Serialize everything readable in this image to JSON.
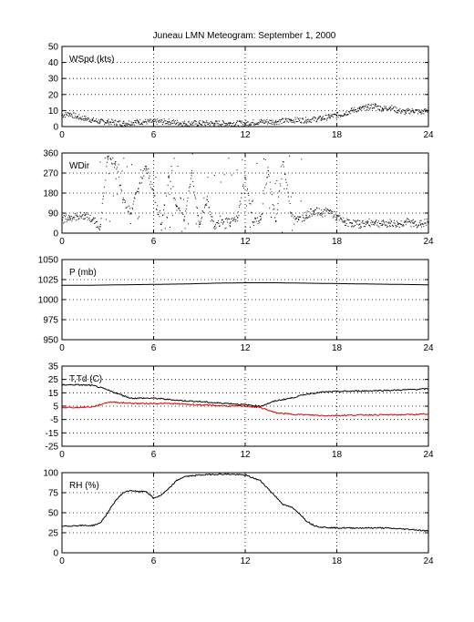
{
  "title": "Juneau LMN Meteogram: September  1, 2000",
  "colors": {
    "axis": "#000000",
    "grid": "#000000",
    "primary": "#000000",
    "dewpoint": "#dd0000"
  },
  "chart_data": [
    {
      "type": "scatter",
      "label": "WSpd (kts)",
      "xlim": [
        0,
        24
      ],
      "ylim": [
        0,
        50
      ],
      "xticks": [
        0,
        6,
        12,
        18,
        24
      ],
      "yticks": [
        0,
        10,
        20,
        30,
        40,
        50
      ],
      "grid": true,
      "series": [
        {
          "color": "#000000",
          "x": [
            0,
            0.5,
            1,
            1.5,
            2,
            2.5,
            3,
            4,
            5,
            6,
            7,
            8,
            9,
            10,
            11,
            12,
            13,
            14,
            15,
            16,
            17,
            17.5,
            18,
            18.5,
            19,
            19.5,
            20,
            20.5,
            21,
            21.5,
            22,
            22.5,
            23,
            23.5,
            24
          ],
          "y": [
            7,
            8,
            6,
            5,
            4,
            3,
            3,
            2,
            3,
            3,
            3,
            2,
            2,
            2,
            2,
            2,
            3,
            3,
            4,
            4,
            5,
            6,
            7,
            8,
            10,
            11,
            12,
            13,
            11,
            12,
            10,
            9,
            10,
            9,
            10
          ]
        }
      ]
    },
    {
      "type": "scatter",
      "label": "WDir",
      "xlim": [
        0,
        24
      ],
      "ylim": [
        0,
        360
      ],
      "xticks": [
        0,
        6,
        12,
        18,
        24
      ],
      "yticks": [
        0,
        90,
        180,
        270,
        360
      ],
      "grid": true,
      "series": [
        {
          "color": "#000000",
          "x": [
            0,
            0.5,
            1,
            1.5,
            2,
            2.5,
            3,
            3.5,
            4,
            4.5,
            5,
            5.5,
            6,
            6.5,
            7,
            7.5,
            8,
            8.5,
            9,
            9.5,
            10,
            10.5,
            11,
            11.5,
            12,
            12.5,
            13,
            13.5,
            14,
            14.5,
            15,
            15.5,
            16,
            16.5,
            17,
            17.5,
            18,
            18.5,
            19,
            19.5,
            20,
            20.5,
            21,
            21.5,
            22,
            22.5,
            23,
            23.5,
            24
          ],
          "y": [
            60,
            70,
            75,
            80,
            60,
            30,
            340,
            320,
            150,
            90,
            200,
            300,
            180,
            40,
            250,
            120,
            60,
            270,
            40,
            150,
            30,
            60,
            45,
            70,
            250,
            50,
            60,
            280,
            55,
            320,
            90,
            60,
            80,
            100,
            90,
            100,
            70,
            50,
            45,
            40,
            45,
            50,
            40,
            45,
            40,
            50,
            45,
            40,
            50
          ]
        }
      ]
    },
    {
      "type": "line",
      "label": "P (mb)",
      "xlim": [
        0,
        24
      ],
      "ylim": [
        950,
        1050
      ],
      "xticks": [
        0,
        6,
        12,
        18,
        24
      ],
      "yticks": [
        950,
        975,
        1000,
        1025,
        1050
      ],
      "grid": true,
      "series": [
        {
          "color": "#000000",
          "x": [
            0,
            2,
            4,
            6,
            8,
            10,
            12,
            14,
            16,
            18,
            20,
            22,
            24
          ],
          "y": [
            1018,
            1018,
            1018.5,
            1019,
            1019.5,
            1020.5,
            1021,
            1021,
            1020.5,
            1020,
            1019.5,
            1019,
            1018.5
          ]
        }
      ]
    },
    {
      "type": "line",
      "label": "T,Td (C)",
      "xlim": [
        0,
        24
      ],
      "ylim": [
        -25,
        35
      ],
      "xticks": [
        0,
        6,
        12,
        18,
        24
      ],
      "yticks": [
        -25,
        -15,
        -5,
        5,
        15,
        25,
        35
      ],
      "grid": true,
      "series": [
        {
          "color": "#000000",
          "x": [
            0,
            1,
            2,
            2.5,
            3,
            3.5,
            4,
            4.5,
            5,
            6,
            7,
            8,
            9,
            10,
            11,
            12,
            13,
            13.5,
            14,
            15,
            16,
            17,
            18,
            20,
            22,
            24
          ],
          "y": [
            21,
            21,
            20.5,
            19,
            17,
            15,
            13,
            11,
            11,
            11,
            10,
            9,
            8.5,
            7.5,
            7,
            6,
            5,
            7,
            9,
            11,
            14,
            15.5,
            16,
            16.5,
            17,
            18
          ]
        },
        {
          "color": "#dd0000",
          "x": [
            0,
            1,
            2,
            2.5,
            3,
            3.5,
            4,
            5,
            6,
            7,
            8,
            9,
            10,
            11,
            12,
            13,
            13.5,
            14,
            15,
            16,
            17,
            18,
            20,
            22,
            24
          ],
          "y": [
            4,
            4,
            4.5,
            6,
            8,
            8,
            7.5,
            7,
            7,
            7,
            6.5,
            6,
            5.5,
            5,
            5,
            4,
            2,
            0,
            -1,
            -1.5,
            -2,
            -2,
            -1.5,
            -1.5,
            -1
          ]
        }
      ]
    },
    {
      "type": "line",
      "label": "RH (%)",
      "xlim": [
        0,
        24
      ],
      "ylim": [
        0,
        100
      ],
      "xticks": [
        0,
        6,
        12,
        18,
        24
      ],
      "yticks": [
        0,
        25,
        50,
        75,
        100
      ],
      "grid": true,
      "series": [
        {
          "color": "#000000",
          "x": [
            0,
            1,
            2,
            2.5,
            3,
            3.5,
            4,
            4.5,
            5,
            5.5,
            6,
            6.5,
            7,
            7.5,
            8,
            9,
            10,
            11,
            12,
            13,
            13.5,
            14,
            14.5,
            15,
            15.5,
            16,
            16.5,
            17,
            18,
            19,
            20,
            21,
            22,
            23,
            24
          ],
          "y": [
            33,
            34,
            34,
            37,
            50,
            65,
            75,
            78,
            76,
            77,
            68,
            72,
            80,
            90,
            95,
            97,
            98,
            98,
            97,
            90,
            80,
            70,
            60,
            57,
            50,
            40,
            34,
            32,
            31,
            31,
            31,
            31,
            30,
            29,
            27
          ]
        }
      ]
    }
  ]
}
